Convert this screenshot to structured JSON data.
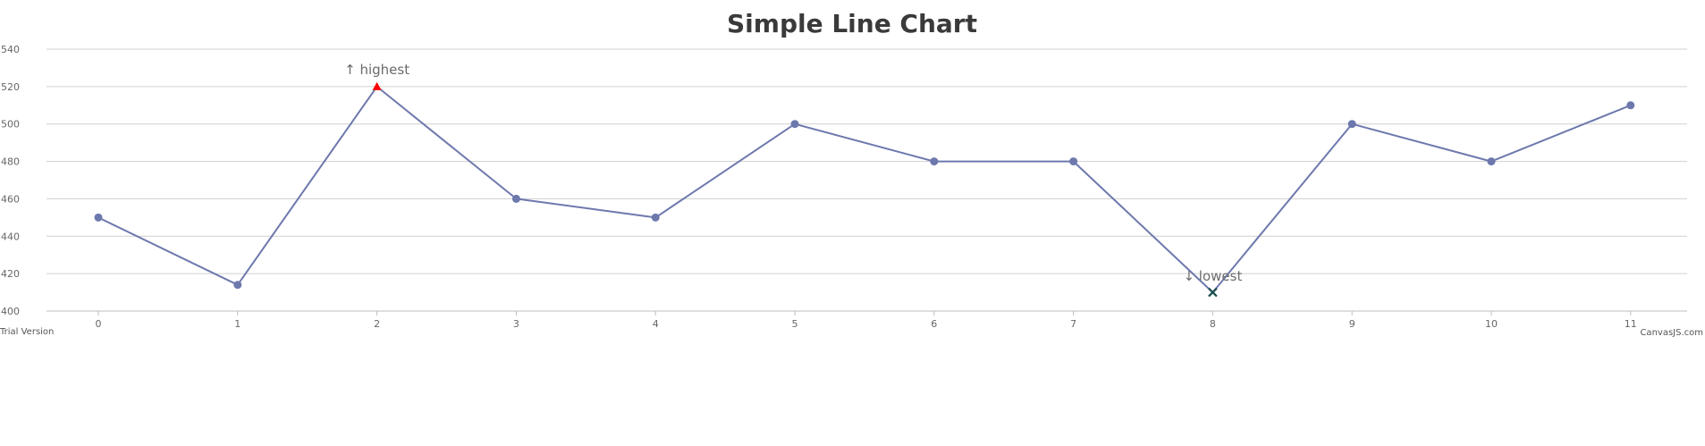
{
  "chart_data": {
    "type": "line",
    "title": "Simple Line Chart",
    "xlabel": "",
    "ylabel": "",
    "x": [
      0,
      1,
      2,
      3,
      4,
      5,
      6,
      7,
      8,
      9,
      10,
      11
    ],
    "series": [
      {
        "values": [
          450,
          414,
          520,
          460,
          450,
          500,
          480,
          480,
          410,
          500,
          480,
          510
        ],
        "color": "#6d78ad"
      }
    ],
    "ylim": [
      400,
      540
    ],
    "yticks": [
      400,
      420,
      440,
      460,
      480,
      500,
      520,
      540
    ],
    "xticks": [
      0,
      1,
      2,
      3,
      4,
      5,
      6,
      7,
      8,
      9,
      10,
      11
    ],
    "grid": "horizontal",
    "annotations": [
      {
        "index": 2,
        "label": "↑ highest",
        "marker": "triangle",
        "marker_color": "#ff0000"
      },
      {
        "index": 8,
        "label": "↓ lowest",
        "marker": "cross",
        "marker_color": "#1b4d4d"
      }
    ]
  },
  "credits": {
    "left": "Trial Version",
    "right": "CanvasJS.com"
  }
}
